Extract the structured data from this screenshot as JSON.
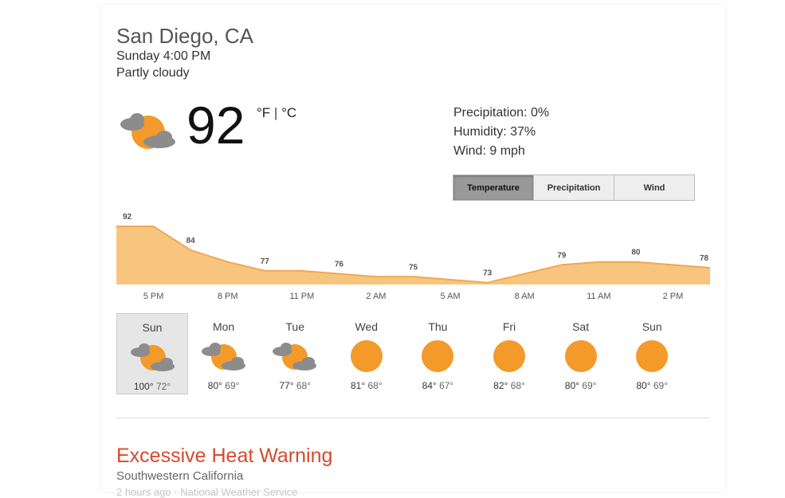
{
  "location": "San Diego, CA",
  "datetime": "Sunday 4:00 PM",
  "condition": "Partly cloudy",
  "current": {
    "temperature": "92",
    "unit_f": "°F",
    "unit_separator": "|",
    "unit_c": "°C",
    "icon": "partly-cloudy-icon"
  },
  "details": {
    "precipitation": "Precipitation: 0%",
    "humidity": "Humidity: 37%",
    "wind": "Wind: 9 mph"
  },
  "tabs": [
    {
      "label": "Temperature",
      "active": true
    },
    {
      "label": "Precipitation",
      "active": false
    },
    {
      "label": "Wind",
      "active": false
    }
  ],
  "chart_data": {
    "type": "area",
    "x": [
      "",
      "5 PM",
      "",
      "8 PM",
      "",
      "11 PM",
      "",
      "2 AM",
      "",
      "5 AM",
      "",
      "8 AM",
      "",
      "11 AM",
      "",
      "2 PM",
      ""
    ],
    "values": [
      92,
      92,
      84,
      80,
      77,
      77,
      76,
      75,
      75,
      74,
      73,
      76,
      79,
      80,
      80,
      79,
      78
    ],
    "labels": [
      "92",
      "",
      "84",
      "",
      "77",
      "",
      "76",
      "",
      "75",
      "",
      "73",
      "",
      "79",
      "",
      "80",
      "",
      "78"
    ],
    "tick_labels": [
      "5 PM",
      "8 PM",
      "11 PM",
      "2 AM",
      "5 AM",
      "8 AM",
      "11 AM",
      "2 PM"
    ],
    "fill_color": "#f8c57e",
    "line_color": "#f0a850"
  },
  "forecast": [
    {
      "day": "Sun",
      "hi": "100°",
      "lo": "72°",
      "icon": "partly-cloudy-icon",
      "selected": true
    },
    {
      "day": "Mon",
      "hi": "80°",
      "lo": "69°",
      "icon": "partly-cloudy-icon",
      "selected": false
    },
    {
      "day": "Tue",
      "hi": "77°",
      "lo": "68°",
      "icon": "partly-cloudy-icon",
      "selected": false
    },
    {
      "day": "Wed",
      "hi": "81°",
      "lo": "68°",
      "icon": "sun-icon",
      "selected": false
    },
    {
      "day": "Thu",
      "hi": "84°",
      "lo": "67°",
      "icon": "sun-icon",
      "selected": false
    },
    {
      "day": "Fri",
      "hi": "82°",
      "lo": "68°",
      "icon": "sun-icon",
      "selected": false
    },
    {
      "day": "Sat",
      "hi": "80°",
      "lo": "69°",
      "icon": "sun-icon",
      "selected": false
    },
    {
      "day": "Sun",
      "hi": "80°",
      "lo": "69°",
      "icon": "sun-icon",
      "selected": false
    }
  ],
  "alert": {
    "title": "Excessive Heat Warning",
    "area": "Southwestern California",
    "meta": "2 hours ago · National Weather Service"
  },
  "colors": {
    "sun": "#f39a2b",
    "cloud": "#8c8c8c",
    "alert": "#d9492c"
  }
}
